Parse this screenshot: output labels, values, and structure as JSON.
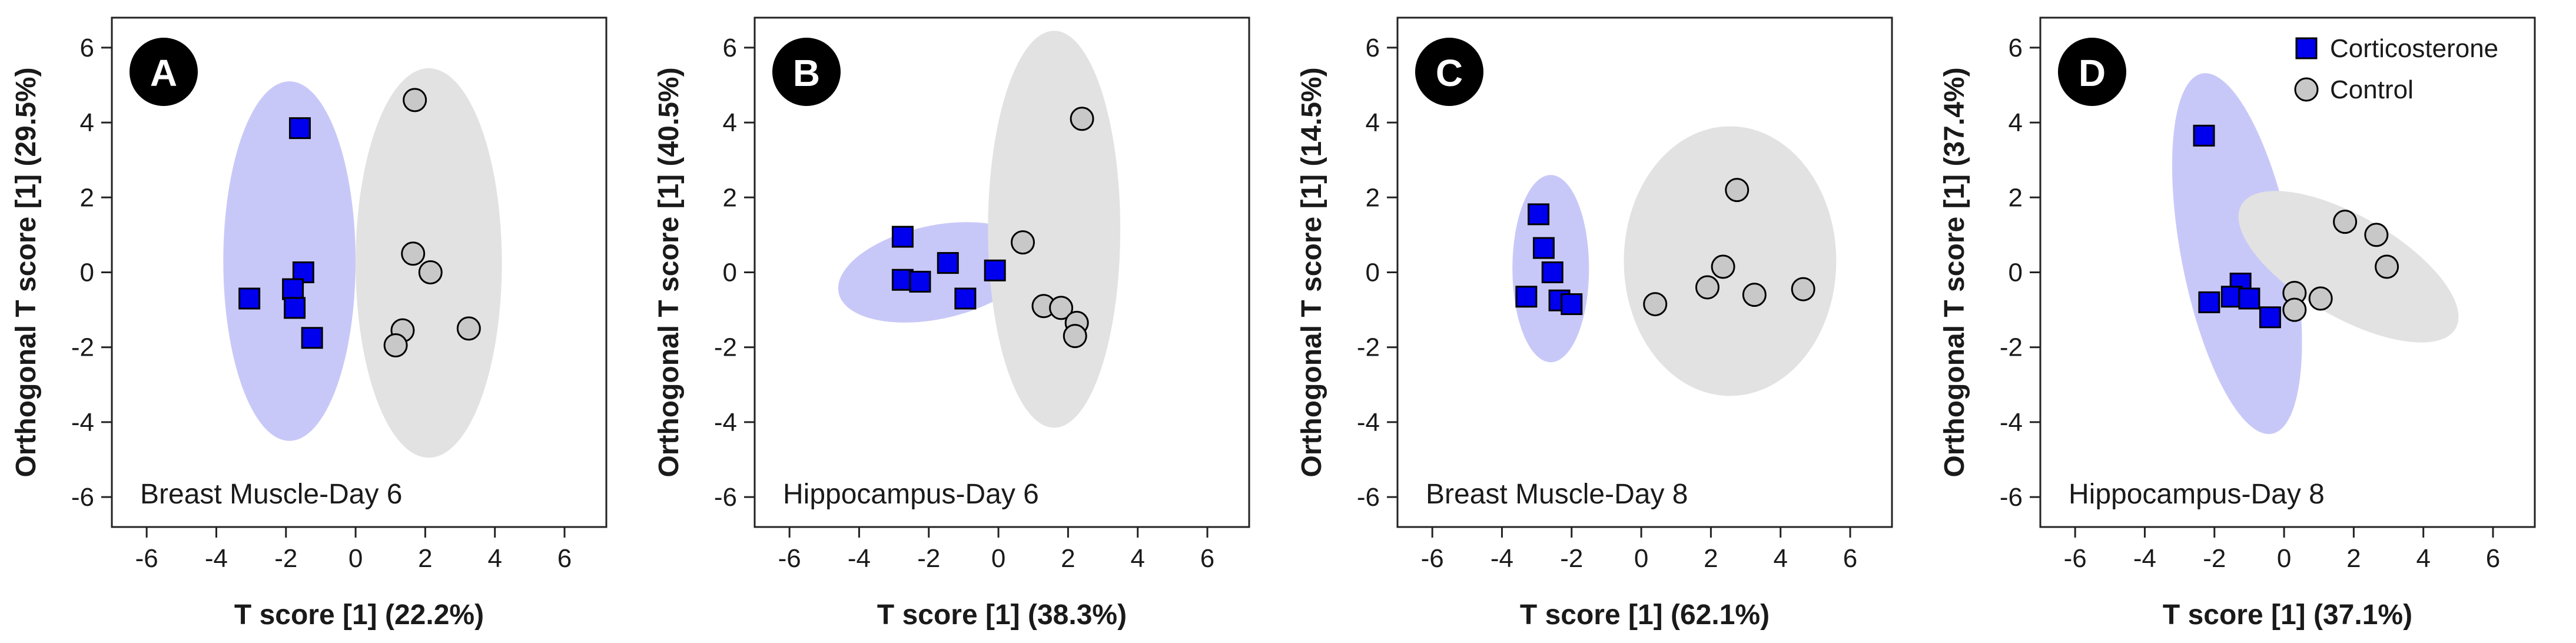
{
  "colors": {
    "corticosterone_marker": "#0000ee",
    "corticosterone_ellipse": "#c8c8f8",
    "control_marker": "#c8c8c8",
    "control_ellipse": "#e2e2e2",
    "badge": "#000000"
  },
  "legend": {
    "items": [
      {
        "label": "Corticosterone",
        "marker": "square"
      },
      {
        "label": "Control",
        "marker": "circle"
      }
    ]
  },
  "chart_data": [
    {
      "type": "scatter",
      "badge": "A",
      "annotation": "Breast Muscle-Day 6",
      "xlabel": "T score [1] (22.2%)",
      "ylabel": "Orthogonal T score [1] (29.5%)",
      "xlim": [
        -7,
        7.2
      ],
      "ylim": [
        -6.8,
        6.8
      ],
      "xticks": [
        -6,
        -4,
        -2,
        0,
        2,
        4,
        6
      ],
      "yticks": [
        -6,
        -4,
        -2,
        0,
        2,
        4,
        6
      ],
      "series": [
        {
          "name": "Corticosterone",
          "marker": "square",
          "points": [
            [
              -1.6,
              3.85
            ],
            [
              -1.5,
              0.0
            ],
            [
              -1.8,
              -0.45
            ],
            [
              -3.05,
              -0.7
            ],
            [
              -1.75,
              -0.95
            ],
            [
              -1.25,
              -1.75
            ]
          ],
          "ellipse": {
            "cx": -1.9,
            "cy": 0.3,
            "rx": 1.9,
            "ry": 4.8,
            "angle": 0
          }
        },
        {
          "name": "Control",
          "marker": "circle",
          "points": [
            [
              1.7,
              4.6
            ],
            [
              1.65,
              0.5
            ],
            [
              2.15,
              0.0
            ],
            [
              1.35,
              -1.55
            ],
            [
              1.15,
              -1.95
            ],
            [
              3.25,
              -1.5
            ]
          ],
          "ellipse": {
            "cx": 2.1,
            "cy": 0.25,
            "rx": 2.1,
            "ry": 5.2,
            "angle": 0
          }
        }
      ]
    },
    {
      "type": "scatter",
      "badge": "B",
      "annotation": "Hippocampus-Day 6",
      "xlabel": "T score [1] (38.3%)",
      "ylabel": "Orthogonal T score [1] (40.5%)",
      "xlim": [
        -7,
        7.2
      ],
      "ylim": [
        -6.8,
        6.8
      ],
      "xticks": [
        -6,
        -4,
        -2,
        0,
        2,
        4,
        6
      ],
      "yticks": [
        -6,
        -4,
        -2,
        0,
        2,
        4,
        6
      ],
      "series": [
        {
          "name": "Corticosterone",
          "marker": "square",
          "points": [
            [
              -2.75,
              0.95
            ],
            [
              -1.45,
              0.25
            ],
            [
              -0.1,
              0.05
            ],
            [
              -2.75,
              -0.2
            ],
            [
              -2.25,
              -0.25
            ],
            [
              -0.95,
              -0.7
            ]
          ],
          "ellipse": {
            "cx": -1.8,
            "cy": 0.0,
            "rx": 2.85,
            "ry": 1.25,
            "angle": -12
          }
        },
        {
          "name": "Control",
          "marker": "circle",
          "points": [
            [
              2.4,
              4.1
            ],
            [
              0.7,
              0.8
            ],
            [
              1.3,
              -0.9
            ],
            [
              1.8,
              -0.95
            ],
            [
              2.25,
              -1.35
            ],
            [
              2.2,
              -1.7
            ]
          ],
          "ellipse": {
            "cx": 1.6,
            "cy": 1.15,
            "rx": 1.9,
            "ry": 5.3,
            "angle": 0
          }
        }
      ]
    },
    {
      "type": "scatter",
      "badge": "C",
      "annotation": "Breast Muscle-Day 8",
      "xlabel": "T score [1] (62.1%)",
      "ylabel": "Orthogonal T score [1] (14.5%)",
      "xlim": [
        -7,
        7.2
      ],
      "ylim": [
        -6.8,
        6.8
      ],
      "xticks": [
        -6,
        -4,
        -2,
        0,
        2,
        4,
        6
      ],
      "yticks": [
        -6,
        -4,
        -2,
        0,
        2,
        4,
        6
      ],
      "series": [
        {
          "name": "Corticosterone",
          "marker": "square",
          "points": [
            [
              -2.95,
              1.55
            ],
            [
              -2.8,
              0.65
            ],
            [
              -2.55,
              0.0
            ],
            [
              -3.3,
              -0.65
            ],
            [
              -2.35,
              -0.75
            ],
            [
              -2.0,
              -0.85
            ]
          ],
          "ellipse": {
            "cx": -2.6,
            "cy": 0.1,
            "rx": 1.1,
            "ry": 2.5,
            "angle": 0
          }
        },
        {
          "name": "Control",
          "marker": "circle",
          "points": [
            [
              2.75,
              2.2
            ],
            [
              2.35,
              0.15
            ],
            [
              1.9,
              -0.4
            ],
            [
              3.25,
              -0.6
            ],
            [
              4.65,
              -0.45
            ],
            [
              0.4,
              -0.85
            ]
          ],
          "ellipse": {
            "cx": 2.55,
            "cy": 0.3,
            "rx": 3.05,
            "ry": 3.6,
            "angle": 0
          }
        }
      ]
    },
    {
      "type": "scatter",
      "badge": "D",
      "annotation": "Hippocampus-Day 8",
      "xlabel": "T score [1] (37.1%)",
      "ylabel": "Orthogonal T score [1] (37.4%)",
      "xlim": [
        -7,
        7.2
      ],
      "ylim": [
        -6.8,
        6.8
      ],
      "xticks": [
        -6,
        -4,
        -2,
        0,
        2,
        4,
        6
      ],
      "yticks": [
        -6,
        -4,
        -2,
        0,
        2,
        4,
        6
      ],
      "series": [
        {
          "name": "Corticosterone",
          "marker": "square",
          "points": [
            [
              -2.3,
              3.65
            ],
            [
              -1.25,
              -0.3
            ],
            [
              -1.5,
              -0.65
            ],
            [
              -2.15,
              -0.8
            ],
            [
              -1.0,
              -0.7
            ],
            [
              -0.4,
              -1.2
            ]
          ],
          "ellipse": {
            "cx": -1.35,
            "cy": 0.5,
            "rx": 1.6,
            "ry": 4.9,
            "angle": -11
          }
        },
        {
          "name": "Control",
          "marker": "circle",
          "points": [
            [
              1.75,
              1.35
            ],
            [
              2.65,
              1.0
            ],
            [
              2.95,
              0.15
            ],
            [
              1.05,
              -0.7
            ],
            [
              0.3,
              -0.55
            ],
            [
              0.3,
              -1.0
            ]
          ],
          "ellipse": {
            "cx": 1.85,
            "cy": 0.15,
            "rx": 3.55,
            "ry": 1.35,
            "angle": 30
          }
        }
      ]
    }
  ]
}
